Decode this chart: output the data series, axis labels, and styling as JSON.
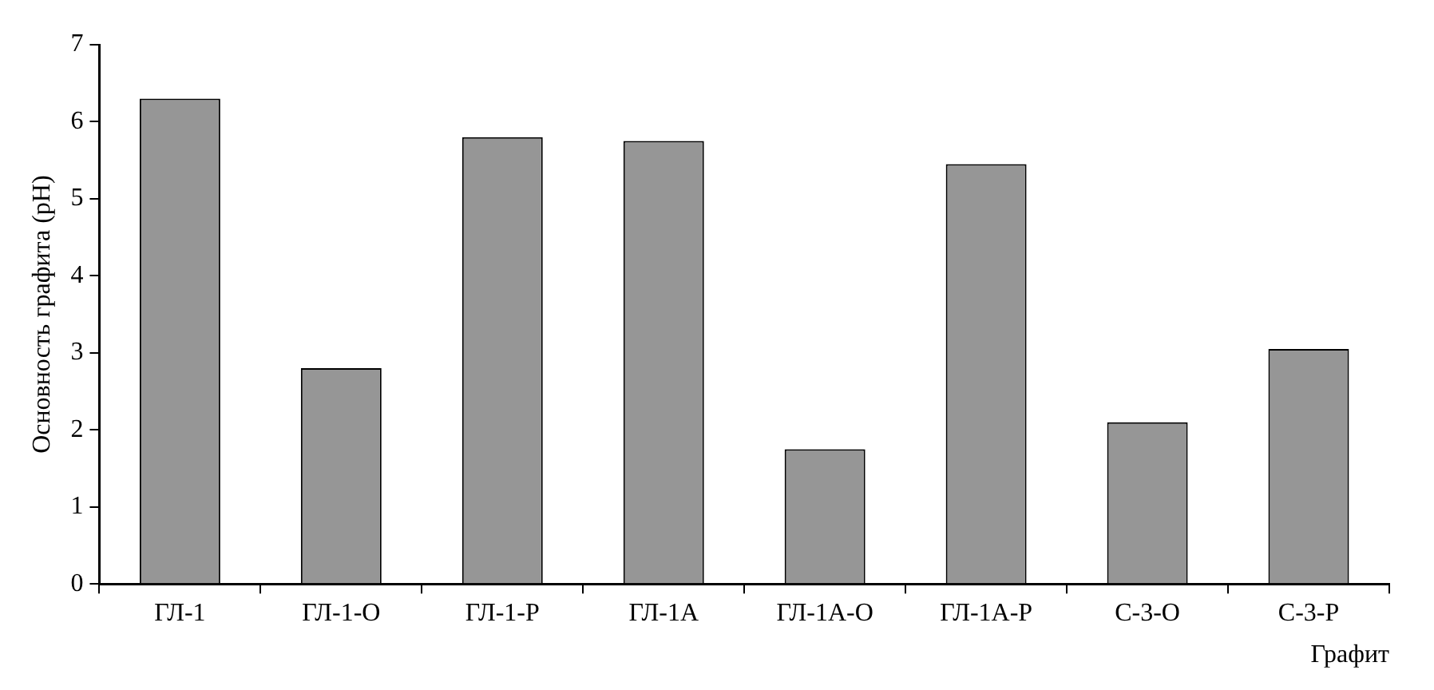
{
  "chart_data": {
    "type": "bar",
    "ylabel": "Основность графита (pH)",
    "xlabel": "Графит",
    "categories": [
      "ГЛ-1",
      "ГЛ-1-О",
      "ГЛ-1-Р",
      "ГЛ-1А",
      "ГЛ-1А-О",
      "ГЛ-1А-Р",
      "С-3-О",
      "С-3-Р"
    ],
    "values": [
      6.3,
      2.8,
      5.8,
      5.75,
      1.75,
      5.45,
      2.1,
      3.05
    ],
    "color": "#969696",
    "ylim": [
      0,
      7
    ],
    "yticks": [
      0,
      1,
      2,
      3,
      4,
      5,
      6,
      7
    ],
    "grid": false,
    "legend": false
  }
}
